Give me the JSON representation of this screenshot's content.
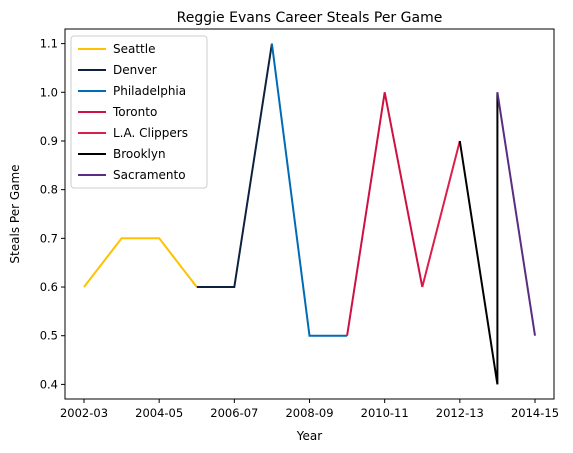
{
  "chart_data": {
    "type": "line",
    "title": "Reggie Evans Career Steals Per Game",
    "xlabel": "Year",
    "ylabel": "Steals Per Game",
    "x_tick_labels": [
      "2002-03",
      "2004-05",
      "2006-07",
      "2008-09",
      "2010-11",
      "2012-13",
      "2014-15"
    ],
    "x_categories": [
      "2002-03",
      "2003-04",
      "2004-05",
      "2005-06",
      "2006-07",
      "2007-08",
      "2008-09",
      "2009-10",
      "2010-11",
      "2011-12",
      "2012-13",
      "2013-14",
      "2014-15"
    ],
    "ylim": [
      0.37,
      1.13
    ],
    "y_ticks": [
      0.4,
      0.5,
      0.6,
      0.7,
      0.8,
      0.9,
      1.0,
      1.1
    ],
    "y_tick_labels": [
      "0.4",
      "0.5",
      "0.6",
      "0.7",
      "0.8",
      "0.9",
      "1.0",
      "1.1"
    ],
    "grid": false,
    "legend_position": "top-left",
    "series": [
      {
        "name": "Seattle",
        "color": "#FFC200",
        "points": [
          [
            "2002-03",
            0.6
          ],
          [
            "2003-04",
            0.7
          ],
          [
            "2004-05",
            0.7
          ],
          [
            "2005-06",
            0.6
          ]
        ]
      },
      {
        "name": "Denver",
        "color": "#0E2240",
        "points": [
          [
            "2005-06",
            0.6
          ],
          [
            "2006-07",
            0.6
          ],
          [
            "2007-08",
            1.1
          ]
        ]
      },
      {
        "name": "Philadelphia",
        "color": "#006BB6",
        "points": [
          [
            "2007-08",
            1.1
          ],
          [
            "2008-09",
            0.5
          ],
          [
            "2009-10",
            0.5
          ]
        ]
      },
      {
        "name": "Toronto",
        "color": "#CE1141",
        "points": [
          [
            "2009-10",
            0.5
          ],
          [
            "2010-11",
            1.0
          ],
          [
            "2011-12",
            0.6
          ]
        ]
      },
      {
        "name": "L.A. Clippers",
        "color": "#DC1E4A",
        "points": [
          [
            "2011-12",
            0.6
          ],
          [
            "2012-13",
            0.9
          ]
        ]
      },
      {
        "name": "Brooklyn",
        "color": "#000000",
        "points": [
          [
            "2012-13",
            0.9
          ],
          [
            "2013-14",
            0.4
          ],
          [
            "2013-14",
            1.0
          ]
        ]
      },
      {
        "name": "Sacramento",
        "color": "#5A2D81",
        "points": [
          [
            "2013-14",
            1.0
          ],
          [
            "2014-15",
            0.5
          ]
        ]
      }
    ]
  }
}
